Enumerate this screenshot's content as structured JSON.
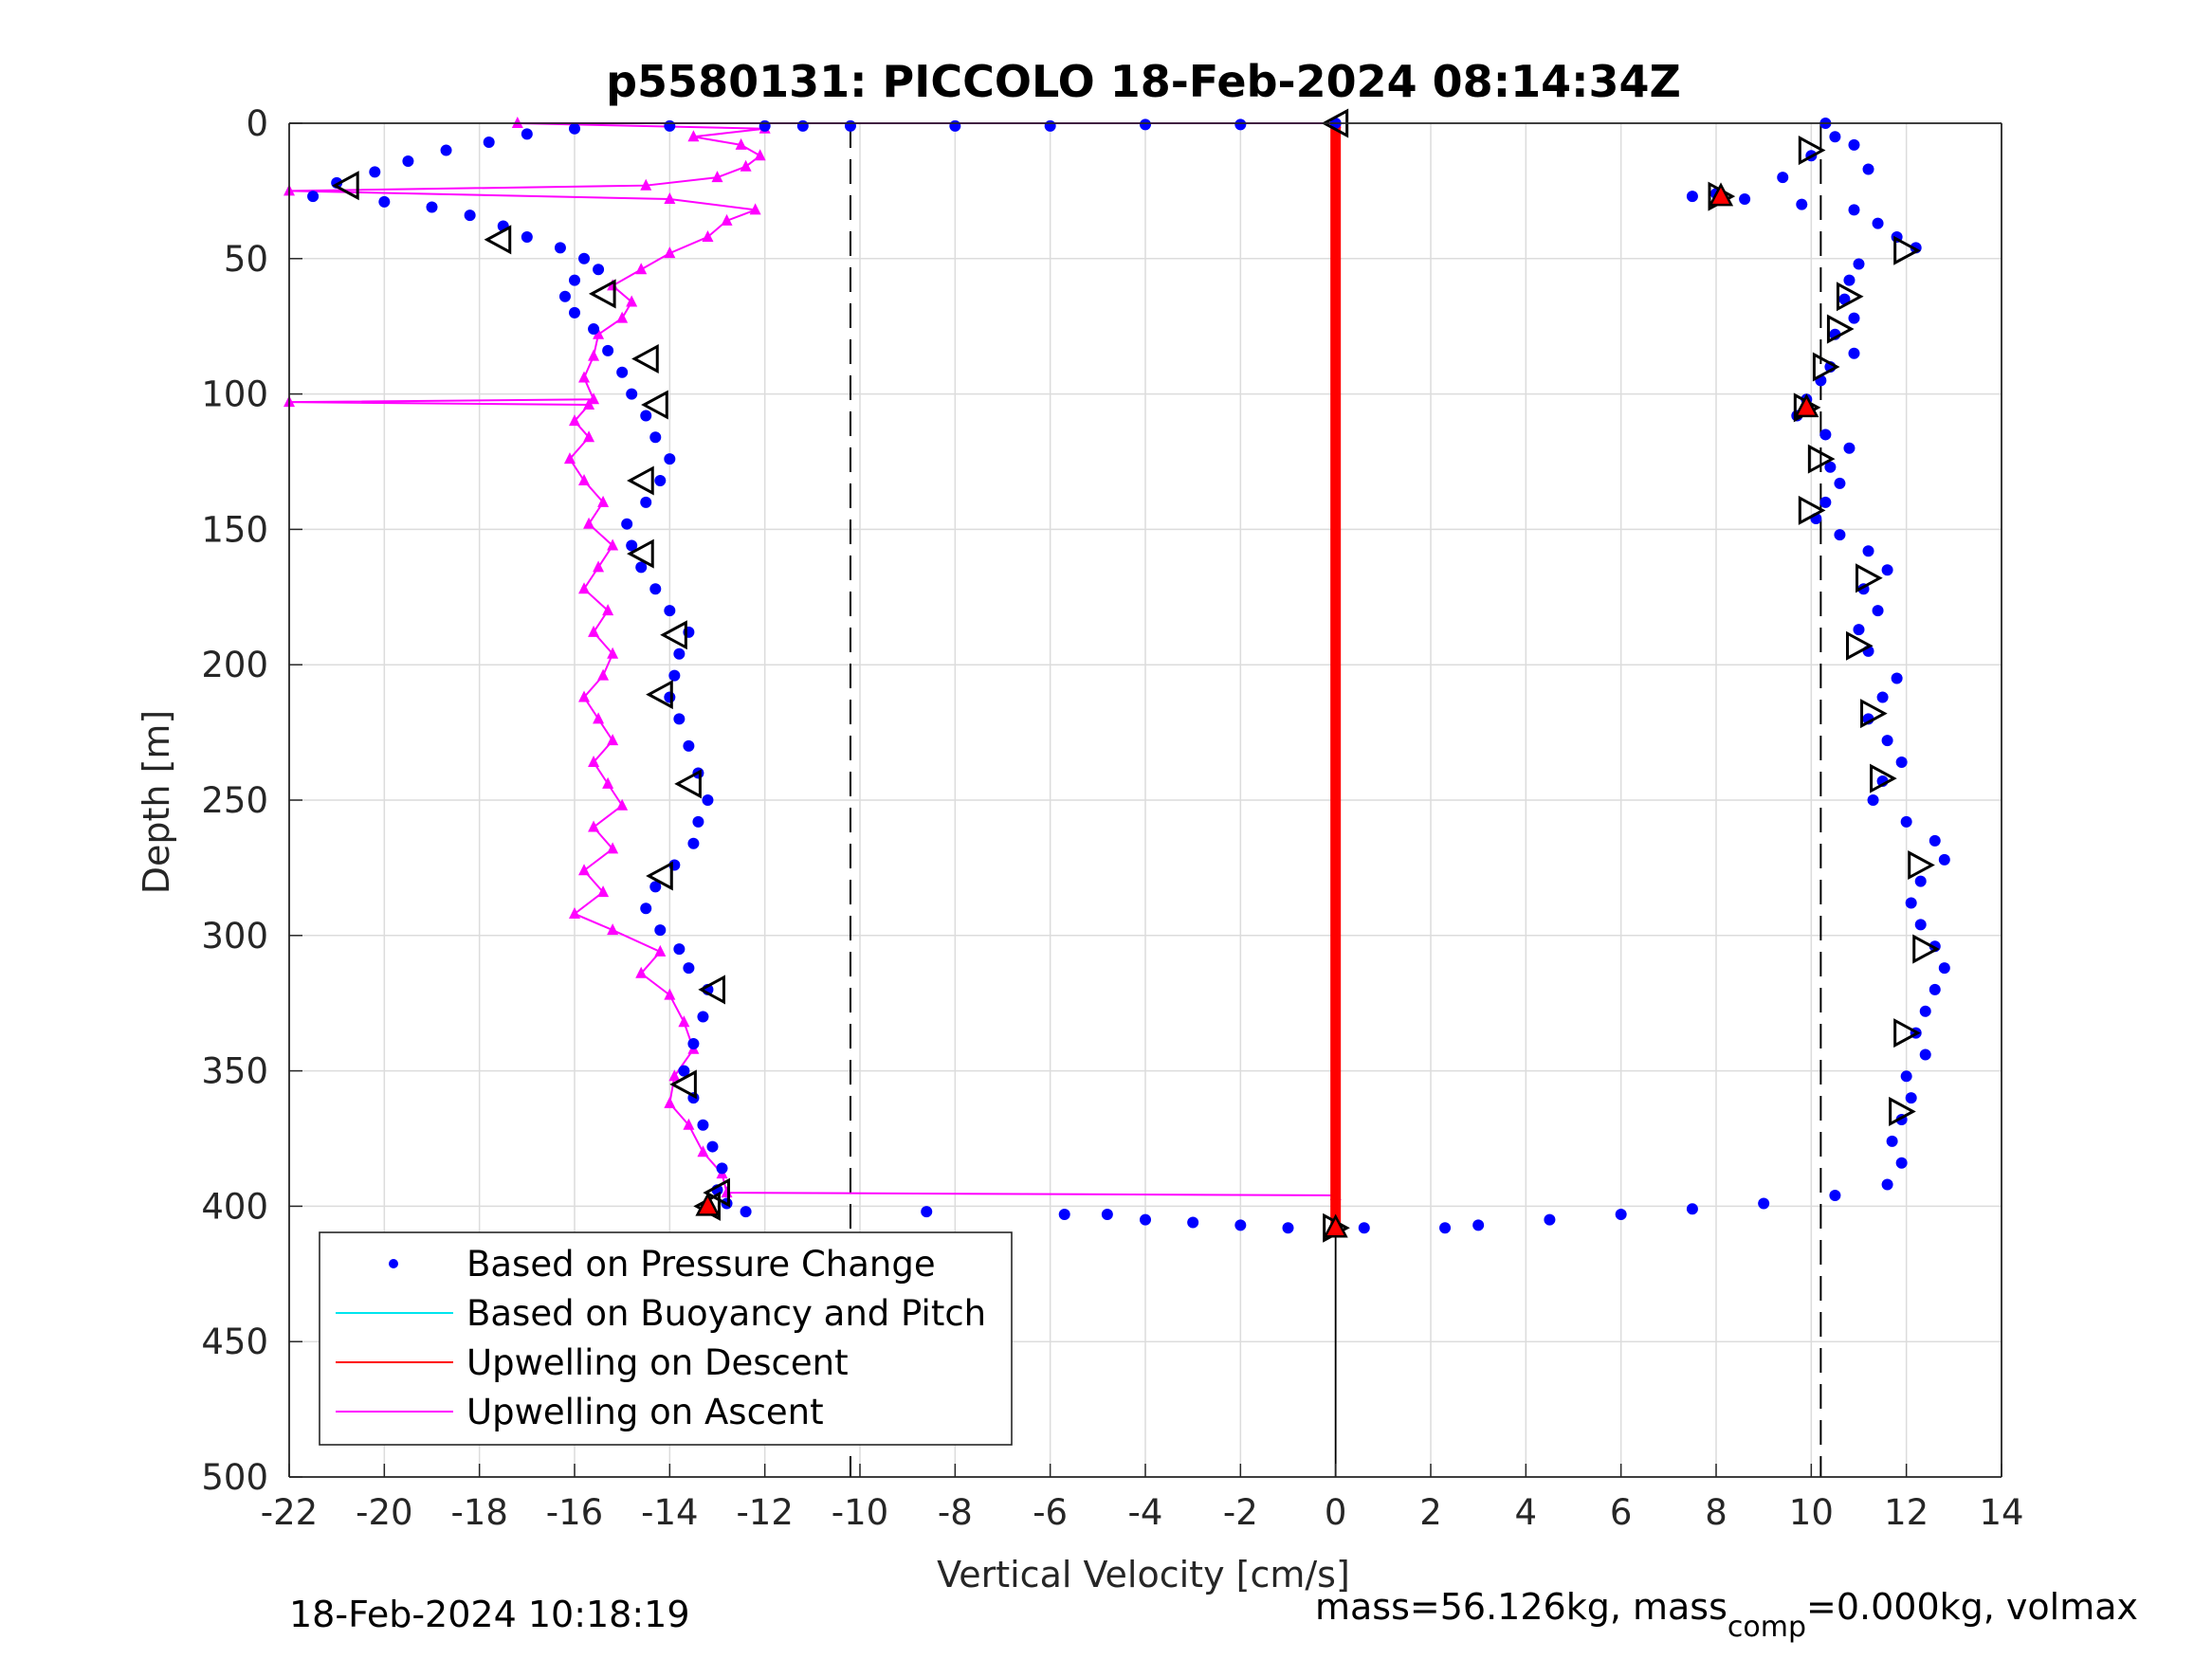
{
  "chart_data": {
    "type": "scatter",
    "title": "p5580131: PICCOLO 18-Feb-2024 08:14:34Z",
    "xlabel": "Vertical Velocity [cm/s]",
    "ylabel": "Depth [m]",
    "xlim": [
      -22,
      14
    ],
    "ylim": [
      500,
      0
    ],
    "y_reversed": true,
    "grid": true,
    "xticks": [
      "-22",
      "-20",
      "-18",
      "-16",
      "-14",
      "-12",
      "-10",
      "-8",
      "-6",
      "-4",
      "-2",
      "0",
      "2",
      "4",
      "6",
      "8",
      "10",
      "12",
      "14"
    ],
    "yticks": [
      "0",
      "50",
      "100",
      "150",
      "200",
      "250",
      "300",
      "350",
      "400",
      "450",
      "500"
    ],
    "reference_lines": {
      "dashed_x": [
        -10.2,
        10.2
      ],
      "solid_x": [
        0
      ]
    },
    "legend": {
      "placement": "bottom-left",
      "entries": [
        "Based on Pressure Change",
        "Based on Buoyancy and Pitch",
        "Upwelling on Descent",
        "Upwelling on Ascent"
      ]
    },
    "colors": {
      "pressure": "#0000ff",
      "buoyancy": "#00e5ee",
      "descent": "#ff0000",
      "ascent": "#ff00ff"
    },
    "pressure_descent": [
      [
        10.3,
        0
      ],
      [
        10.5,
        5
      ],
      [
        10.9,
        8
      ],
      [
        10.0,
        12
      ],
      [
        11.2,
        17
      ],
      [
        9.4,
        20
      ],
      [
        8.0,
        26
      ],
      [
        7.5,
        27
      ],
      [
        8.6,
        28
      ],
      [
        9.8,
        30
      ],
      [
        10.9,
        32
      ],
      [
        11.4,
        37
      ],
      [
        11.8,
        42
      ],
      [
        12.2,
        46
      ],
      [
        11.0,
        52
      ],
      [
        10.8,
        58
      ],
      [
        10.7,
        65
      ],
      [
        10.9,
        72
      ],
      [
        10.5,
        78
      ],
      [
        10.9,
        85
      ],
      [
        10.4,
        90
      ],
      [
        10.2,
        95
      ],
      [
        9.9,
        102
      ],
      [
        9.7,
        108
      ],
      [
        10.3,
        115
      ],
      [
        10.8,
        120
      ],
      [
        10.4,
        127
      ],
      [
        10.6,
        133
      ],
      [
        10.3,
        140
      ],
      [
        10.1,
        146
      ],
      [
        10.6,
        152
      ],
      [
        11.2,
        158
      ],
      [
        11.6,
        165
      ],
      [
        11.1,
        172
      ],
      [
        11.4,
        180
      ],
      [
        11.0,
        187
      ],
      [
        11.2,
        195
      ],
      [
        11.8,
        205
      ],
      [
        11.5,
        212
      ],
      [
        11.2,
        220
      ],
      [
        11.6,
        228
      ],
      [
        11.9,
        236
      ],
      [
        11.5,
        243
      ],
      [
        11.3,
        250
      ],
      [
        12.0,
        258
      ],
      [
        12.6,
        265
      ],
      [
        12.8,
        272
      ],
      [
        12.3,
        280
      ],
      [
        12.1,
        288
      ],
      [
        12.3,
        296
      ],
      [
        12.6,
        304
      ],
      [
        12.8,
        312
      ],
      [
        12.6,
        320
      ],
      [
        12.4,
        328
      ],
      [
        12.2,
        336
      ],
      [
        12.4,
        344
      ],
      [
        12.0,
        352
      ],
      [
        12.1,
        360
      ],
      [
        11.9,
        368
      ],
      [
        11.7,
        376
      ],
      [
        11.9,
        384
      ],
      [
        11.6,
        392
      ],
      [
        10.5,
        396
      ],
      [
        9.0,
        399
      ],
      [
        7.5,
        401
      ],
      [
        6.0,
        403
      ],
      [
        4.5,
        405
      ],
      [
        3.0,
        407
      ],
      [
        2.3,
        408
      ],
      [
        0.6,
        408
      ],
      [
        0.0,
        408
      ]
    ],
    "pressure_ascent": [
      [
        0.0,
        408
      ],
      [
        -1.0,
        408
      ],
      [
        -2.0,
        407
      ],
      [
        -3.0,
        406
      ],
      [
        -4.0,
        405
      ],
      [
        -4.8,
        403
      ],
      [
        -5.7,
        403
      ],
      [
        -8.6,
        402
      ],
      [
        -12.4,
        402
      ],
      [
        -12.8,
        399
      ],
      [
        -13.0,
        394
      ],
      [
        -12.9,
        386
      ],
      [
        -13.1,
        378
      ],
      [
        -13.3,
        370
      ],
      [
        -13.5,
        360
      ],
      [
        -13.7,
        350
      ],
      [
        -13.5,
        340
      ],
      [
        -13.3,
        330
      ],
      [
        -13.2,
        320
      ],
      [
        -13.6,
        312
      ],
      [
        -13.8,
        305
      ],
      [
        -14.2,
        298
      ],
      [
        -14.5,
        290
      ],
      [
        -14.3,
        282
      ],
      [
        -13.9,
        274
      ],
      [
        -13.5,
        266
      ],
      [
        -13.4,
        258
      ],
      [
        -13.2,
        250
      ],
      [
        -13.4,
        240
      ],
      [
        -13.6,
        230
      ],
      [
        -13.8,
        220
      ],
      [
        -14.0,
        212
      ],
      [
        -13.9,
        204
      ],
      [
        -13.8,
        196
      ],
      [
        -13.6,
        188
      ],
      [
        -14.0,
        180
      ],
      [
        -14.3,
        172
      ],
      [
        -14.6,
        164
      ],
      [
        -14.8,
        156
      ],
      [
        -14.9,
        148
      ],
      [
        -14.5,
        140
      ],
      [
        -14.2,
        132
      ],
      [
        -14.0,
        124
      ],
      [
        -14.3,
        116
      ],
      [
        -14.5,
        108
      ],
      [
        -14.8,
        100
      ],
      [
        -15.0,
        92
      ],
      [
        -15.3,
        84
      ],
      [
        -15.6,
        76
      ],
      [
        -16.0,
        70
      ],
      [
        -16.2,
        64
      ],
      [
        -16.0,
        58
      ],
      [
        -15.5,
        54
      ],
      [
        -15.8,
        50
      ],
      [
        -16.3,
        46
      ],
      [
        -17.0,
        42
      ],
      [
        -17.5,
        38
      ],
      [
        -18.2,
        34
      ],
      [
        -19.0,
        31
      ],
      [
        -20.0,
        29
      ],
      [
        -21.5,
        27
      ],
      [
        -21.0,
        22
      ],
      [
        -20.2,
        18
      ],
      [
        -19.5,
        14
      ],
      [
        -18.7,
        10
      ],
      [
        -17.8,
        7
      ],
      [
        -17.0,
        4
      ],
      [
        -16.0,
        2
      ],
      [
        -14.0,
        1
      ],
      [
        -12.0,
        1
      ],
      [
        -11.2,
        1
      ],
      [
        -10.2,
        1
      ],
      [
        -8.0,
        1
      ],
      [
        -6.0,
        1
      ],
      [
        -4.0,
        0.5
      ],
      [
        -2.0,
        0.5
      ],
      [
        0.0,
        0
      ]
    ],
    "ascent_upwelling": [
      [
        0.0,
        396
      ],
      [
        -12.8,
        395
      ],
      [
        -12.9,
        388
      ],
      [
        -13.3,
        380
      ],
      [
        -13.6,
        370
      ],
      [
        -14.0,
        362
      ],
      [
        -13.9,
        352
      ],
      [
        -13.5,
        342
      ],
      [
        -13.7,
        332
      ],
      [
        -14.0,
        322
      ],
      [
        -14.6,
        314
      ],
      [
        -14.2,
        306
      ],
      [
        -15.2,
        298
      ],
      [
        -16.0,
        292
      ],
      [
        -15.4,
        284
      ],
      [
        -15.8,
        276
      ],
      [
        -15.2,
        268
      ],
      [
        -15.6,
        260
      ],
      [
        -15.0,
        252
      ],
      [
        -15.3,
        244
      ],
      [
        -15.6,
        236
      ],
      [
        -15.2,
        228
      ],
      [
        -15.5,
        220
      ],
      [
        -15.8,
        212
      ],
      [
        -15.4,
        204
      ],
      [
        -15.2,
        196
      ],
      [
        -15.6,
        188
      ],
      [
        -15.3,
        180
      ],
      [
        -15.8,
        172
      ],
      [
        -15.5,
        164
      ],
      [
        -15.2,
        156
      ],
      [
        -15.7,
        148
      ],
      [
        -15.4,
        140
      ],
      [
        -15.8,
        132
      ],
      [
        -16.1,
        124
      ],
      [
        -15.7,
        116
      ],
      [
        -16.0,
        110
      ],
      [
        -15.7,
        104
      ],
      [
        -22.0,
        103
      ],
      [
        -15.6,
        102
      ],
      [
        -15.8,
        94
      ],
      [
        -15.6,
        86
      ],
      [
        -15.5,
        78
      ],
      [
        -15.0,
        72
      ],
      [
        -14.8,
        66
      ],
      [
        -15.2,
        60
      ],
      [
        -14.6,
        54
      ],
      [
        -14.0,
        48
      ],
      [
        -13.2,
        42
      ],
      [
        -12.8,
        36
      ],
      [
        -12.2,
        32
      ],
      [
        -14.0,
        28
      ],
      [
        -22.0,
        25
      ],
      [
        -14.5,
        23
      ],
      [
        -13.0,
        20
      ],
      [
        -12.4,
        16
      ],
      [
        -12.1,
        12
      ],
      [
        -12.5,
        8
      ],
      [
        -13.5,
        5
      ],
      [
        -12.0,
        2
      ],
      [
        -17.2,
        0
      ],
      [
        0.0,
        0
      ]
    ],
    "descent_upwelling": {
      "x": 0.0,
      "depth_range": [
        0,
        408
      ]
    },
    "markers_descent": [
      [
        10.0,
        10
      ],
      [
        8.1,
        27
      ],
      [
        12.0,
        47
      ],
      [
        10.8,
        64
      ],
      [
        10.6,
        76
      ],
      [
        10.3,
        90
      ],
      [
        9.9,
        105
      ],
      [
        10.2,
        124
      ],
      [
        10.0,
        143
      ],
      [
        11.2,
        168
      ],
      [
        11.0,
        193
      ],
      [
        11.3,
        218
      ],
      [
        11.5,
        242
      ],
      [
        12.3,
        274
      ],
      [
        12.4,
        305
      ],
      [
        12.0,
        336
      ],
      [
        11.9,
        365
      ],
      [
        0.0,
        408
      ]
    ],
    "markers_ascent": [
      [
        -20.8,
        23
      ],
      [
        -17.6,
        43
      ],
      [
        -15.4,
        63
      ],
      [
        -14.5,
        87
      ],
      [
        -14.3,
        104
      ],
      [
        -14.6,
        132
      ],
      [
        -14.6,
        159
      ],
      [
        -13.9,
        189
      ],
      [
        -14.2,
        211
      ],
      [
        -13.6,
        244
      ],
      [
        -14.2,
        278
      ],
      [
        -13.1,
        320
      ],
      [
        -13.7,
        355
      ],
      [
        -13.0,
        395
      ],
      [
        -13.2,
        400
      ],
      [
        0.0,
        0
      ]
    ],
    "red_markers": [
      [
        8.1,
        27
      ],
      [
        9.9,
        105
      ],
      [
        0.0,
        408
      ],
      [
        -13.2,
        400
      ]
    ]
  },
  "footer": {
    "timestamp": "18-Feb-2024 10:18:19",
    "mass_prefix": "mass=56.126kg, mass",
    "mass_subscript": "comp",
    "mass_suffix": "=0.000kg, volmax"
  }
}
